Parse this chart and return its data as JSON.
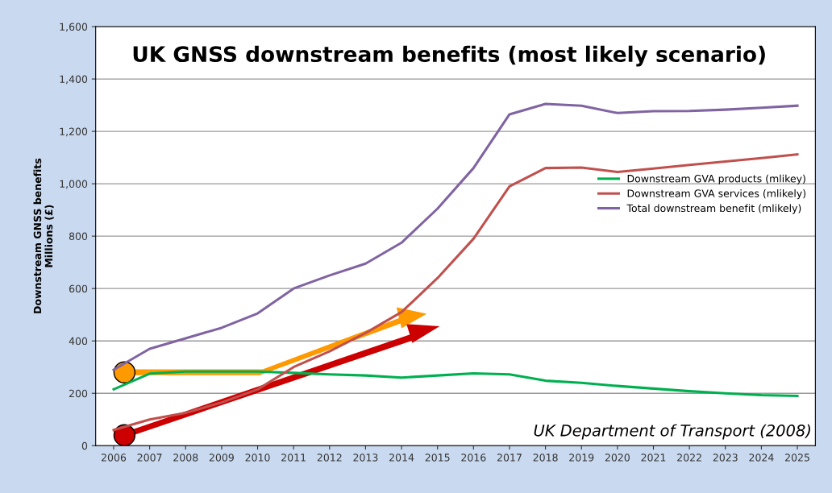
{
  "chart_data": {
    "type": "line",
    "title": "UK GNSS downstream benefits (most likely scenario)",
    "ylabel": "Downstream GNSS benefits\nMillions (£)",
    "categories": [
      "2006",
      "2007",
      "2008",
      "2009",
      "2010",
      "2011",
      "2012",
      "2013",
      "2014",
      "2015",
      "2016",
      "2017",
      "2018",
      "2019",
      "2020",
      "2021",
      "2022",
      "2023",
      "2024",
      "2025"
    ],
    "series": [
      {
        "name": "Downstream GVA products (mlikey)",
        "color": "#00b050",
        "values": [
          215,
          275,
          283,
          283,
          283,
          278,
          272,
          268,
          260,
          268,
          276,
          272,
          248,
          240,
          228,
          218,
          208,
          200,
          193,
          190
        ]
      },
      {
        "name": "Downstream GVA services (mlikely)",
        "color": "#c0504d",
        "values": [
          60,
          100,
          125,
          165,
          215,
          300,
          360,
          430,
          510,
          640,
          790,
          990,
          1060,
          1062,
          1045,
          1058,
          1072,
          1085,
          1098,
          1112
        ]
      },
      {
        "name": "Total downstream benefit (mlikely)",
        "color": "#8064a2",
        "values": [
          290,
          370,
          410,
          450,
          505,
          600,
          650,
          695,
          775,
          905,
          1060,
          1265,
          1305,
          1298,
          1270,
          1277,
          1278,
          1283,
          1290,
          1298
        ]
      }
    ],
    "ylim": [
      0,
      1600
    ],
    "yticks": [
      {
        "value": 0,
        "label": "0"
      },
      {
        "value": 200,
        "label": "200"
      },
      {
        "value": 400,
        "label": "400"
      },
      {
        "value": 600,
        "label": "600"
      },
      {
        "value": 800,
        "label": "800"
      },
      {
        "value": 1000,
        "label": "1,000"
      },
      {
        "value": 1200,
        "label": "1,200"
      },
      {
        "value": 1400,
        "label": "1,400"
      },
      {
        "value": 1600,
        "label": "1,600"
      }
    ],
    "grid": "y",
    "legend": "right",
    "marker": "none",
    "line_style": "solid",
    "annotations": [
      "UK Department of Transport (2008)"
    ]
  }
}
